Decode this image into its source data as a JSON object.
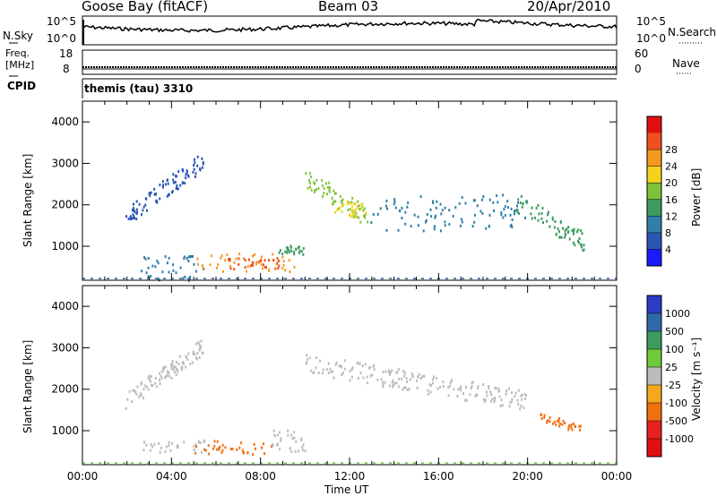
{
  "header": {
    "station": "Goose Bay (fitACF)",
    "beam": "Beam 03",
    "date": "20/Apr/2010"
  },
  "noise_panel": {
    "left_label": "N.Sky",
    "right_label": "N.Search",
    "left_ticks": [
      "10^5",
      "10^0"
    ],
    "right_ticks": [
      "10^5",
      "10^0"
    ]
  },
  "freq_panel": {
    "left_label_1": "Freq.",
    "left_label_2": "[MHz]",
    "left_ticks": [
      "18",
      "8"
    ],
    "right_label": "Nave",
    "right_ticks": [
      "60",
      "0"
    ]
  },
  "cpid_panel": {
    "label": "CPID",
    "program": "themis (tau) 3310"
  },
  "chart_data": [
    {
      "type": "heatmap",
      "name": "power",
      "ylabel": "Slant Range [km]",
      "xlabel": "",
      "y_ticks": [
        1000,
        2000,
        3000,
        4000
      ],
      "ylim": [
        180,
        4500
      ],
      "xlim": [
        0,
        24
      ],
      "colorbar": {
        "label": "Power [dB]",
        "levels": [
          0,
          4,
          8,
          12,
          16,
          20,
          24,
          28,
          32
        ],
        "tick_labels": [
          "4",
          "8",
          "12",
          "16",
          "20",
          "24",
          "28"
        ],
        "colors": [
          "#1a1aff",
          "#2b56b4",
          "#2f7fa8",
          "#3d9b5f",
          "#7fc23a",
          "#f5d21e",
          "#f59a1e",
          "#f05020",
          "#e01010"
        ]
      },
      "regions": [
        {
          "t0": 1.9,
          "t1": 5.4,
          "r0": 1500,
          "r1": 3300,
          "slope": "rising",
          "level": 6
        },
        {
          "t0": 2.6,
          "t1": 5.5,
          "r0": 200,
          "r1": 800,
          "level": 8
        },
        {
          "t0": 5.0,
          "t1": 9.5,
          "r0": 400,
          "r1": 850,
          "level": 24
        },
        {
          "t0": 6.5,
          "t1": 8.8,
          "r0": 450,
          "r1": 750,
          "level": 30
        },
        {
          "t0": 8.8,
          "t1": 10.0,
          "r0": 800,
          "r1": 1050,
          "level": 12
        },
        {
          "t0": 10.0,
          "t1": 12.8,
          "r0": 1500,
          "r1": 2900,
          "slope": "falling",
          "level": 16
        },
        {
          "t0": 11.3,
          "t1": 12.7,
          "r0": 1700,
          "r1": 2100,
          "level": 22
        },
        {
          "t0": 12.8,
          "t1": 20.0,
          "r0": 1400,
          "r1": 2300,
          "level": 8
        },
        {
          "t0": 19.5,
          "t1": 22.5,
          "r0": 900,
          "r1": 2300,
          "slope": "falling",
          "level": 12
        }
      ]
    },
    {
      "type": "heatmap",
      "name": "velocity",
      "ylabel": "Slant Range [km]",
      "xlabel": "Time UT",
      "x_tick_labels": [
        "00:00",
        "04:00",
        "08:00",
        "12:00",
        "16:00",
        "20:00",
        "00:00"
      ],
      "x_ticks": [
        0,
        4,
        8,
        12,
        16,
        20,
        24
      ],
      "y_ticks": [
        1000,
        2000,
        3000,
        4000
      ],
      "ylim": [
        180,
        4500
      ],
      "xlim": [
        0,
        24
      ],
      "colorbar": {
        "label": "Velocity [m s⁻¹]",
        "tick_labels": [
          "1000",
          "500",
          "100",
          "25",
          "-25",
          "-100",
          "-500",
          "-1000"
        ],
        "colors": [
          "#2a3cc8",
          "#2f6aa8",
          "#3d9b5f",
          "#6ecb3a",
          "#bcbcbc",
          "#f5a81e",
          "#f07010",
          "#e82020",
          "#e01010"
        ]
      },
      "regions": [
        {
          "t0": 1.9,
          "t1": 5.4,
          "r0": 1500,
          "r1": 3300,
          "slope": "rising",
          "value": 0
        },
        {
          "t0": 2.6,
          "t1": 5.5,
          "r0": 500,
          "r1": 800,
          "value": 0
        },
        {
          "t0": 5.0,
          "t1": 8.5,
          "r0": 450,
          "r1": 800,
          "value": -120
        },
        {
          "t0": 8.5,
          "t1": 10.0,
          "r0": 500,
          "r1": 1050,
          "value": 0
        },
        {
          "t0": 10.0,
          "t1": 20.0,
          "r0": 1500,
          "r1": 2900,
          "slope": "falling",
          "value": 0
        },
        {
          "t0": 20.5,
          "t1": 22.5,
          "r0": 900,
          "r1": 1500,
          "slope": "falling",
          "value": -200
        }
      ]
    }
  ]
}
